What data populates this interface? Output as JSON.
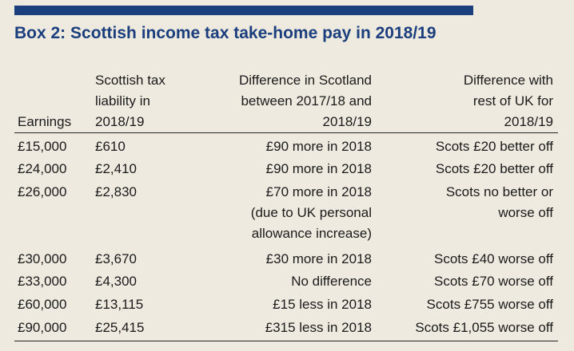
{
  "title": "Box 2: Scottish income tax take-home pay in 2018/19",
  "headers": {
    "earnings": "Earnings",
    "liability": "Scottish tax\nliability in\n2018/19",
    "diff_scotland": "Difference in Scotland\nbetween 2017/18 and\n2018/19",
    "diff_uk": "Difference with\nrest of UK for\n2018/19"
  },
  "rows": [
    {
      "earnings": "£15,000",
      "liability": "£610",
      "diff_scotland": "£90 more in 2018",
      "diff_uk": "Scots £20 better off"
    },
    {
      "earnings": "£24,000",
      "liability": "£2,410",
      "diff_scotland": "£90 more in 2018",
      "diff_uk": "Scots £20 better off"
    },
    {
      "earnings": "£26,000",
      "liability": "£2,830",
      "diff_scotland": "£70 more in 2018\n(due to UK personal\nallowance increase)",
      "diff_uk": "Scots no better or\nworse off"
    },
    {
      "earnings": "£30,000",
      "liability": "£3,670",
      "diff_scotland": "£30 more in 2018",
      "diff_uk": "Scots £40 worse off"
    },
    {
      "earnings": "£33,000",
      "liability": "£4,300",
      "diff_scotland": "No difference",
      "diff_uk": "Scots £70 worse off"
    },
    {
      "earnings": "£60,000",
      "liability": "£13,115",
      "diff_scotland": "£15 less in 2018",
      "diff_uk": "Scots £755 worse off"
    },
    {
      "earnings": "£90,000",
      "liability": "£25,415",
      "diff_scotland": "£315 less in 2018",
      "diff_uk": "Scots £1,055 worse off"
    }
  ],
  "colors": {
    "accent": "#1b3f7d",
    "background": "#efeae0"
  }
}
